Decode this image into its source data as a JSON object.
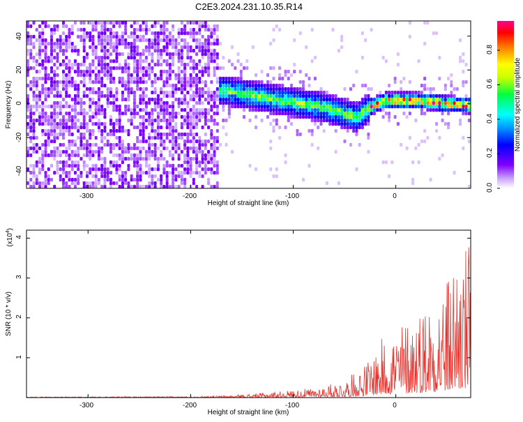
{
  "title": "C2E3.2024.231.10.35.R14",
  "chart_data": [
    {
      "type": "heatmap",
      "xlabel": "Height of straight line (km)",
      "ylabel": "Frequency (Hz)",
      "xlim": [
        -360,
        73
      ],
      "ylim": [
        -50,
        49
      ],
      "x_ticks": [
        "-300",
        "-200",
        "-100",
        "0"
      ],
      "y_ticks": [
        "-40",
        "-20",
        "0",
        "20",
        "40"
      ],
      "colorbar": {
        "label": "Normalized spectral amplitude",
        "range": [
          0,
          0.97
        ],
        "ticks": [
          "0.0",
          "0.2",
          "0.4",
          "0.6",
          "0.8"
        ]
      },
      "ridge": {
        "description_points": [
          {
            "x": -168,
            "y": 8
          },
          {
            "x": -140,
            "y": 5
          },
          {
            "x": -100,
            "y": 1
          },
          {
            "x": -70,
            "y": -2
          },
          {
            "x": -38,
            "y": -8
          },
          {
            "x": -25,
            "y": -2
          },
          {
            "x": -10,
            "y": 2
          },
          {
            "x": 20,
            "y": 2
          },
          {
            "x": 50,
            "y": 0
          },
          {
            "x": 73,
            "y": -1
          }
        ]
      }
    },
    {
      "type": "line",
      "xlabel": "Height of straight line (km)",
      "ylabel": "SNR (10 * v/v)",
      "y_multiplier": "(x10",
      "y_multiplier_exp": "4",
      "y_multiplier_close": ")",
      "xlim": [
        -360,
        73
      ],
      "ylim": [
        0,
        4.2
      ],
      "x_ticks": [
        "-300",
        "-200",
        "-100",
        "0"
      ],
      "y_ticks": [
        "1",
        "2",
        "3",
        "4"
      ],
      "color": "#e8302a",
      "envelope": [
        {
          "x": -360,
          "y": 0.02
        },
        {
          "x": -200,
          "y": 0.03
        },
        {
          "x": -160,
          "y": 0.06
        },
        {
          "x": -120,
          "y": 0.15
        },
        {
          "x": -80,
          "y": 0.25
        },
        {
          "x": -50,
          "y": 0.45
        },
        {
          "x": -30,
          "y": 0.9
        },
        {
          "x": -10,
          "y": 1.7
        },
        {
          "x": 10,
          "y": 2.1
        },
        {
          "x": 30,
          "y": 2.6
        },
        {
          "x": 50,
          "y": 3.2
        },
        {
          "x": 60,
          "y": 4.1
        },
        {
          "x": 73,
          "y": 4.1
        }
      ]
    }
  ]
}
